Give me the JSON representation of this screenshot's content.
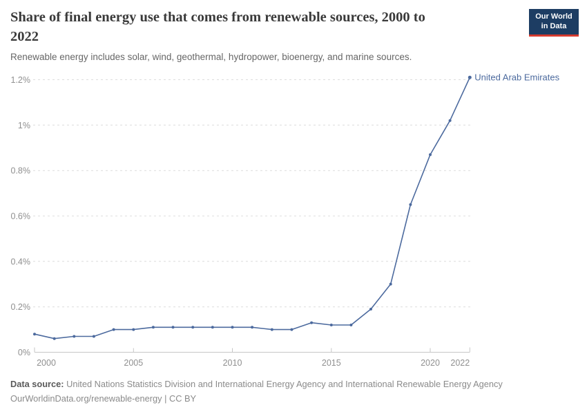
{
  "header": {
    "title": "Share of final energy use that comes from renewable sources, 2000 to 2022",
    "title_lines": [
      "Share of final energy use that comes from renewable sources, 2000 to",
      "2022"
    ],
    "subtitle": "Renewable energy includes solar, wind, geothermal, hydropower, bioenergy, and marine sources.",
    "logo": {
      "line1": "Our World",
      "line2": "in Data",
      "bg_color": "#1d3d63",
      "accent_color": "#d63b2f"
    }
  },
  "chart_data": {
    "type": "line",
    "title": "Share of final energy use that comes from renewable sources, 2000 to 2022",
    "xlabel": "",
    "ylabel": "",
    "xlim": [
      2000,
      2022
    ],
    "ylim": [
      0,
      1.2
    ],
    "grid": "dashed-horizontal",
    "legend_position": "end-of-line-label",
    "x_ticks": [
      2000,
      2005,
      2010,
      2015,
      2020,
      2022
    ],
    "y_ticks": [
      {
        "value": 0,
        "label": "0%"
      },
      {
        "value": 0.2,
        "label": "0.2%"
      },
      {
        "value": 0.4,
        "label": "0.4%"
      },
      {
        "value": 0.6,
        "label": "0.6%"
      },
      {
        "value": 0.8,
        "label": "0.8%"
      },
      {
        "value": 1.0,
        "label": "1%"
      },
      {
        "value": 1.2,
        "label": "1.2%"
      }
    ],
    "series": [
      {
        "name": "United Arab Emirates",
        "color": "#4c6a9e",
        "x": [
          2000,
          2001,
          2002,
          2003,
          2004,
          2005,
          2006,
          2007,
          2008,
          2009,
          2010,
          2011,
          2012,
          2013,
          2014,
          2015,
          2016,
          2017,
          2018,
          2019,
          2020,
          2021,
          2022
        ],
        "values": [
          0.08,
          0.06,
          0.07,
          0.07,
          0.1,
          0.1,
          0.11,
          0.11,
          0.11,
          0.11,
          0.11,
          0.11,
          0.1,
          0.1,
          0.13,
          0.12,
          0.12,
          0.19,
          0.3,
          0.65,
          0.87,
          1.02,
          1.21
        ]
      }
    ],
    "axis_color": "#c6c6c6",
    "gridline_color": "#dcdcdc",
    "tick_label_color": "#8f8f8f"
  },
  "footer": {
    "source_label": "Data source:",
    "source_text": " United Nations Statistics Division and International Energy Agency and International Renewable Energy Agency",
    "link_line": "OurWorldinData.org/renewable-energy | CC BY"
  }
}
